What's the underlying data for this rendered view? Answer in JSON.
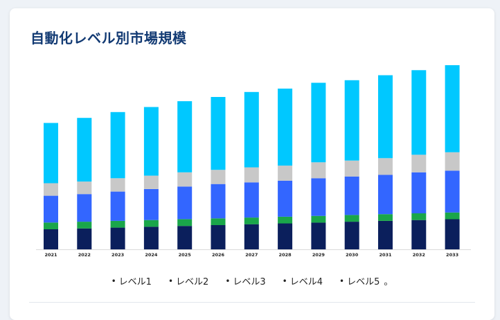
{
  "title": "自動化レベル別市場規模",
  "legend": {
    "items": [
      "レベル1",
      "レベル2",
      "レベル3",
      "レベル4",
      "レベル5"
    ],
    "bullet": "•",
    "suffix": "。"
  },
  "colors": {
    "level1": "#0b1f5c",
    "level2": "#1aa64a",
    "level3": "#3366ff",
    "level4": "#c8c8c8",
    "level5": "#00c8ff",
    "title": "#123a73"
  },
  "chart_data": {
    "type": "bar",
    "stacked": true,
    "title": "自動化レベル別市場規模",
    "xlabel": "",
    "ylabel": "",
    "categories": [
      "2021",
      "2022",
      "2023",
      "2024",
      "2025",
      "2026",
      "2027",
      "2028",
      "2029",
      "2030",
      "2031",
      "2032",
      "2033"
    ],
    "series": [
      {
        "name": "レベル1",
        "color": "#0b1f5c",
        "values": [
          24,
          25,
          26,
          27,
          28,
          29,
          30,
          31,
          32,
          33,
          34,
          35,
          36
        ]
      },
      {
        "name": "レベル2",
        "color": "#1aa64a",
        "values": [
          8,
          8,
          8,
          8,
          8,
          8,
          8,
          8,
          8,
          8,
          8,
          8,
          8
        ]
      },
      {
        "name": "レベル3",
        "color": "#3366ff",
        "values": [
          32,
          33,
          35,
          37,
          39,
          41,
          42,
          43,
          45,
          46,
          47,
          49,
          50
        ]
      },
      {
        "name": "レベル4",
        "color": "#c8c8c8",
        "values": [
          15,
          15,
          16,
          16,
          17,
          17,
          18,
          18,
          19,
          19,
          20,
          21,
          22
        ]
      },
      {
        "name": "レベル5",
        "color": "#00c8ff",
        "values": [
          72,
          76,
          79,
          82,
          85,
          87,
          90,
          92,
          95,
          96,
          99,
          101,
          104
        ]
      }
    ],
    "ylim": [
      0,
      230
    ],
    "grid": false,
    "legend_position": "bottom"
  }
}
